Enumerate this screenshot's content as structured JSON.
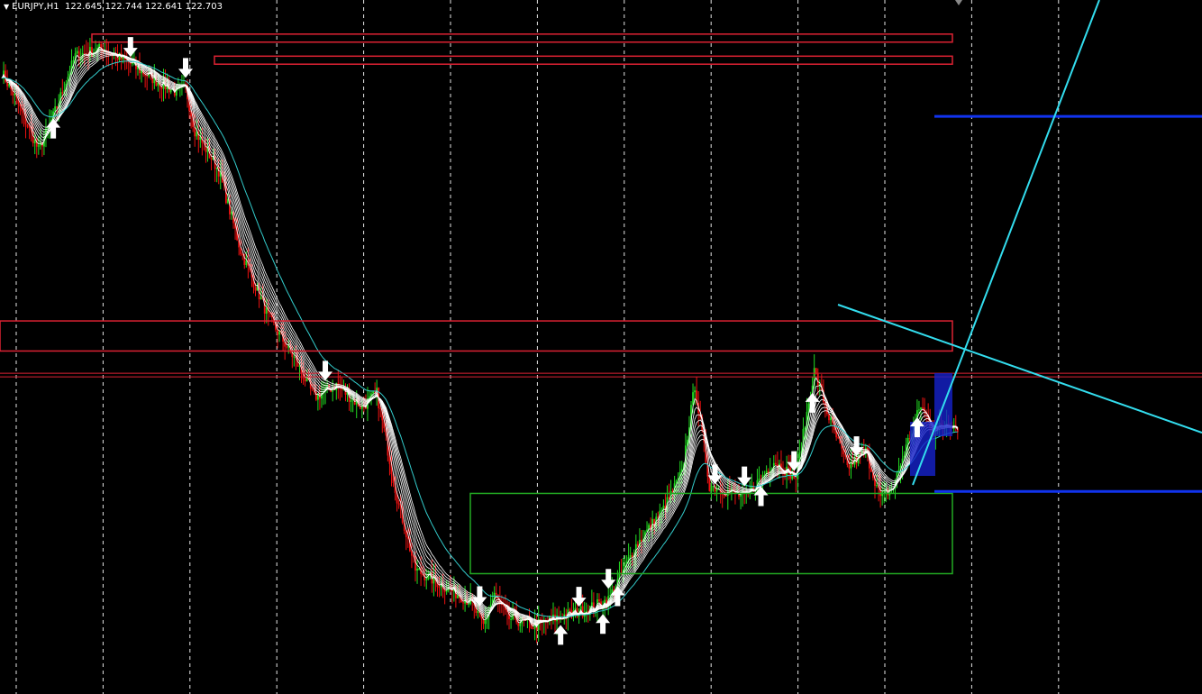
{
  "header": {
    "symbol": "EURJPY,H1",
    "ohlc": "122.645 122.744 122.641 122.703"
  },
  "colors": {
    "background": "#000000",
    "grid": "#ffffff",
    "bull_candle": "#22dd22",
    "bear_candle": "#ee1111",
    "ma_ribbon": "#ffffff",
    "ma_slow": "#33cccc",
    "zone_supply": "#dd2233",
    "zone_demand": "#22aa22",
    "level_blue": "#1133ee",
    "trendline": "#33ddee",
    "signal_arrow": "#ffffff",
    "price_line": "#dd2233"
  },
  "icons": {
    "menu": "triangle-down-icon",
    "buy": "arrow-up-icon",
    "sell": "arrow-down-icon"
  },
  "price_path": {
    "bars": 520,
    "close_anchors": [
      [
        0,
        122.84
      ],
      [
        8,
        122.7
      ],
      [
        20,
        122.45
      ],
      [
        28,
        122.62
      ],
      [
        40,
        122.92
      ],
      [
        55,
        122.96
      ],
      [
        70,
        122.88
      ],
      [
        80,
        122.82
      ],
      [
        95,
        122.74
      ],
      [
        100,
        122.76
      ],
      [
        105,
        122.55
      ],
      [
        118,
        122.35
      ],
      [
        130,
        121.95
      ],
      [
        145,
        121.62
      ],
      [
        160,
        121.4
      ],
      [
        170,
        121.22
      ],
      [
        182,
        121.28
      ],
      [
        196,
        121.17
      ],
      [
        204,
        121.24
      ],
      [
        215,
        120.72
      ],
      [
        225,
        120.36
      ],
      [
        240,
        120.28
      ],
      [
        255,
        120.2
      ],
      [
        262,
        120.08
      ],
      [
        268,
        120.24
      ],
      [
        275,
        120.12
      ],
      [
        290,
        120.08
      ],
      [
        305,
        120.13
      ],
      [
        318,
        120.16
      ],
      [
        330,
        120.21
      ],
      [
        345,
        120.48
      ],
      [
        360,
        120.66
      ],
      [
        370,
        120.84
      ],
      [
        377,
        121.28
      ],
      [
        385,
        120.78
      ],
      [
        405,
        120.72
      ],
      [
        420,
        120.9
      ],
      [
        432,
        120.82
      ],
      [
        442,
        121.35
      ],
      [
        450,
        121.12
      ],
      [
        460,
        120.87
      ],
      [
        470,
        120.95
      ],
      [
        478,
        120.72
      ],
      [
        485,
        120.77
      ],
      [
        493,
        121.0
      ],
      [
        500,
        121.18
      ],
      [
        507,
        121.05
      ],
      [
        515,
        121.1
      ],
      [
        520,
        121.07
      ]
    ]
  },
  "signals": [
    {
      "type": "buy",
      "bar": 28
    },
    {
      "type": "sell",
      "bar": 70
    },
    {
      "type": "sell",
      "bar": 100
    },
    {
      "type": "sell",
      "bar": 176
    },
    {
      "type": "sell",
      "bar": 260
    },
    {
      "type": "buy",
      "bar": 304
    },
    {
      "type": "sell",
      "bar": 314
    },
    {
      "type": "buy",
      "bar": 327
    },
    {
      "type": "sell",
      "bar": 330
    },
    {
      "type": "buy",
      "bar": 335
    },
    {
      "type": "sell",
      "bar": 388
    },
    {
      "type": "sell",
      "bar": 404
    },
    {
      "type": "buy",
      "bar": 413
    },
    {
      "type": "sell",
      "bar": 431
    },
    {
      "type": "buy",
      "bar": 441
    },
    {
      "type": "sell",
      "bar": 465
    },
    {
      "type": "buy",
      "bar": 498
    }
  ],
  "zones": [
    {
      "kind": "supply",
      "top": 123.03,
      "bottom": 122.99
    },
    {
      "kind": "supply",
      "top": 122.92,
      "bottom": 122.88
    },
    {
      "kind": "supply",
      "top": 121.6,
      "bottom": 121.45
    },
    {
      "kind": "demand",
      "top": 120.74,
      "bottom": 120.34
    }
  ],
  "levels": {
    "price_line": 121.33,
    "blue_upper": 122.62,
    "blue_lower": 120.75
  }
}
